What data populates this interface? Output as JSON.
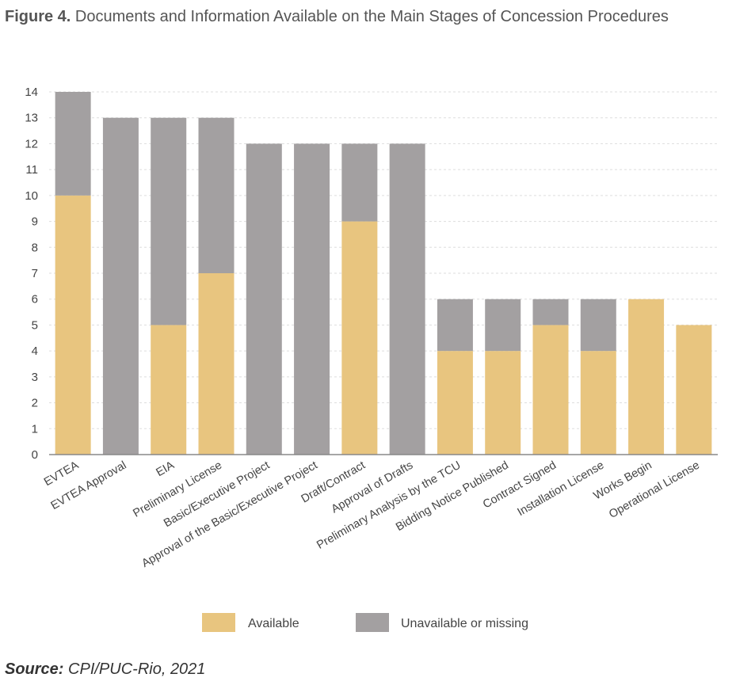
{
  "figure": {
    "label": "Figure 4.",
    "title": "Documents and Information Available on the Main Stages of Concession Procedures"
  },
  "source": {
    "label": "Source:",
    "text": "CPI/PUC-Rio, 2021"
  },
  "colors": {
    "available": "#e8c57f",
    "unavailable": "#a3a0a1",
    "grid": "#dddddd",
    "axis": "#888888"
  },
  "chart_data": {
    "type": "bar",
    "stacked": true,
    "title": "Documents and Information Available on the Main Stages of Concession Procedures",
    "xlabel": "",
    "ylabel": "",
    "ylim": [
      0,
      14
    ],
    "yticks": [
      0,
      1,
      2,
      3,
      4,
      5,
      6,
      7,
      8,
      9,
      10,
      11,
      12,
      13,
      14
    ],
    "grid": true,
    "legend": "bottom",
    "categories": [
      "EVTEA",
      "EVTEA Approval",
      "EIA",
      "Preliminary License",
      "Basic/Executive Project",
      "Approval of the Basic/Executive Project",
      "Draft/Contract",
      "Approval of Drafts",
      "Preliminary Analysis by the TCU",
      "Bidding Notice Published",
      "Contract Signed",
      "Installation License",
      "Works Begin",
      "Operational License"
    ],
    "series": [
      {
        "name": "Available",
        "values": [
          10,
          0,
          5,
          7,
          0,
          0,
          9,
          0,
          4,
          4,
          5,
          4,
          6,
          5
        ]
      },
      {
        "name": "Unavailable or missing",
        "values": [
          4,
          13,
          8,
          6,
          12,
          12,
          3,
          12,
          2,
          2,
          1,
          2,
          0,
          0
        ]
      }
    ]
  }
}
